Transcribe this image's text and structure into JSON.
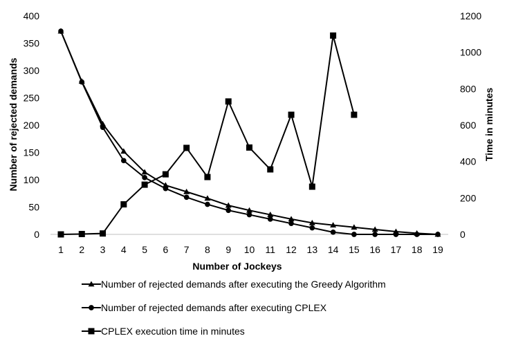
{
  "chart_data": {
    "type": "line",
    "xlabel": "Number of Jockeys",
    "ylabel": "Number of rejected demands",
    "y2label": "Time in minutes",
    "x": [
      1,
      2,
      3,
      4,
      5,
      6,
      7,
      8,
      9,
      10,
      11,
      12,
      13,
      14,
      15,
      16,
      17,
      18,
      19
    ],
    "ylim": [
      0,
      400
    ],
    "yticks": [
      0,
      50,
      100,
      150,
      200,
      250,
      300,
      350,
      400
    ],
    "y2lim": [
      0,
      1200
    ],
    "y2ticks": [
      0,
      200,
      400,
      600,
      800,
      1000,
      1200
    ],
    "grid": false,
    "legend_position": "bottom",
    "series": [
      {
        "name": "Number of rejected demands after executing the Greedy Algorithm",
        "marker": "triangle",
        "axis": "left",
        "x": [
          1,
          2,
          3,
          4,
          5,
          6,
          7,
          8,
          9,
          10,
          11,
          12,
          13,
          14,
          15,
          16,
          17,
          18,
          19
        ],
        "values": [
          372,
          280,
          202,
          152,
          114,
          90,
          78,
          66,
          53,
          44,
          36,
          28,
          21,
          17,
          13,
          9,
          5,
          2,
          0
        ]
      },
      {
        "name": "Number of rejected demands after executing CPLEX",
        "marker": "circle",
        "axis": "left",
        "x": [
          1,
          2,
          3,
          4,
          5,
          6,
          7,
          8,
          9,
          10,
          11,
          12,
          13,
          14,
          15,
          16,
          17,
          18,
          19
        ],
        "values": [
          372,
          279,
          196,
          135,
          104,
          84,
          68,
          55,
          44,
          36,
          28,
          20,
          12,
          4,
          0,
          0,
          0,
          0,
          0
        ]
      },
      {
        "name": "CPLEX execution time in minutes",
        "marker": "square",
        "axis": "right",
        "x": [
          1,
          2,
          3,
          4,
          5,
          6,
          7,
          8,
          9,
          10,
          11,
          12,
          13,
          14,
          15
        ],
        "values": [
          0,
          2,
          5,
          165,
          273,
          330,
          475,
          315,
          730,
          477,
          357,
          657,
          262,
          1092,
          657
        ]
      }
    ]
  }
}
